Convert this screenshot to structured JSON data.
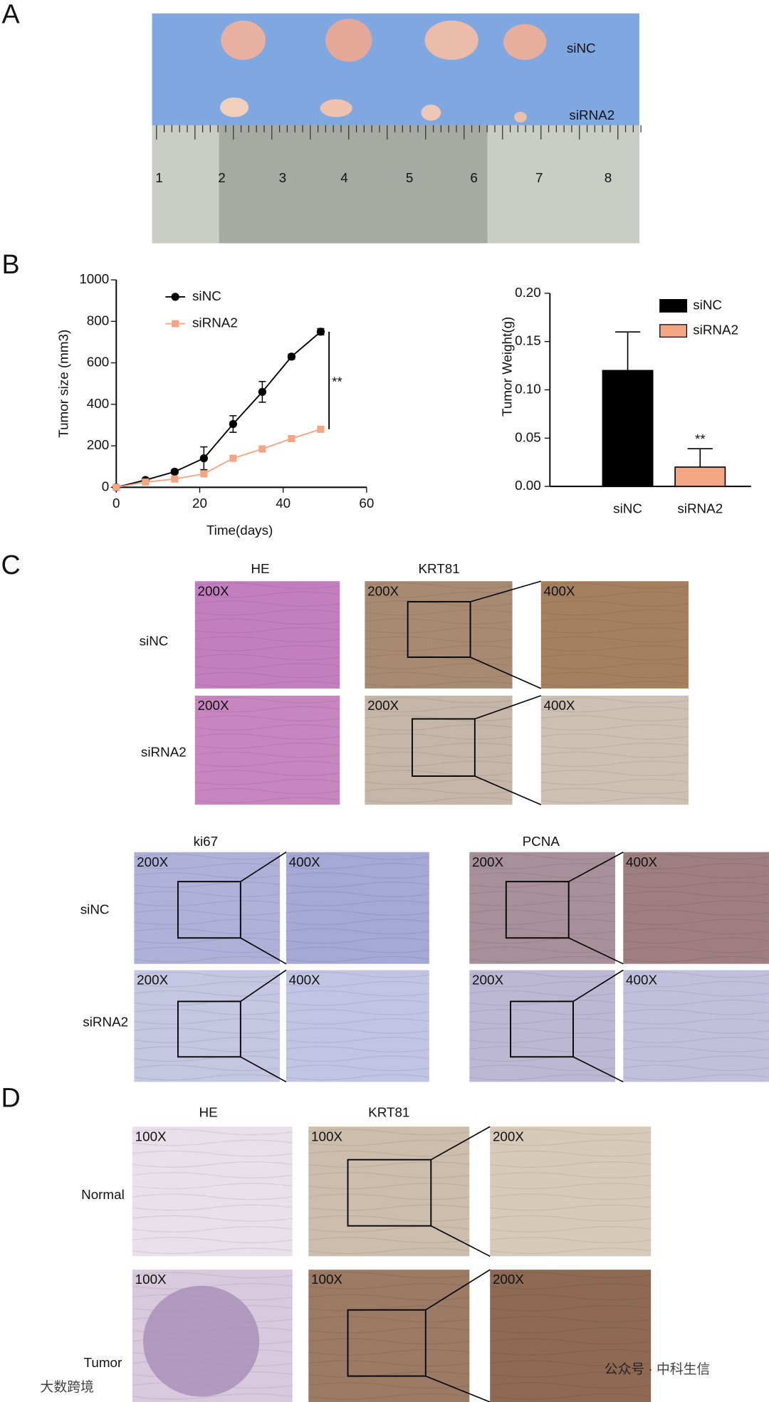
{
  "panel_labels": [
    "A",
    "B",
    "C",
    "D"
  ],
  "panel_a": {
    "rows": [
      "siNC",
      "siRNA2"
    ],
    "ruler": [
      "1",
      "2",
      "3",
      "4",
      "5",
      "6",
      "7",
      "8"
    ]
  },
  "chart_data": [
    {
      "type": "line",
      "xlabel": "Time(days)",
      "ylabel": "Tumor size (mm3)",
      "x": [
        0,
        7,
        14,
        21,
        28,
        35,
        42,
        49
      ],
      "series": [
        {
          "name": "siNC",
          "color": "#000000",
          "marker": "circle",
          "values": [
            0,
            35,
            75,
            140,
            305,
            460,
            630,
            750
          ],
          "errors": [
            5,
            8,
            10,
            55,
            40,
            50,
            12,
            15
          ]
        },
        {
          "name": "siRNA2",
          "color": "#f4a582",
          "marker": "square",
          "values": [
            0,
            25,
            40,
            65,
            140,
            185,
            235,
            280
          ],
          "errors": [
            4,
            5,
            6,
            8,
            10,
            12,
            12,
            12
          ]
        }
      ],
      "xlim": [
        0,
        60
      ],
      "xticks": [
        0,
        20,
        40,
        60
      ],
      "ylim": [
        0,
        1000
      ],
      "yticks": [
        0,
        200,
        400,
        600,
        800,
        1000
      ],
      "legend": "upper left",
      "annotation": "**"
    },
    {
      "type": "bar",
      "ylabel": "Tumor Weight(g)",
      "categories": [
        "siNC",
        "siRNA2"
      ],
      "values": [
        0.12,
        0.02
      ],
      "errors": [
        0.04,
        0.019
      ],
      "colors": [
        "#000000",
        "#f4a582"
      ],
      "ylim": [
        0,
        0.2
      ],
      "yticks": [
        {
          "value": 0,
          "label": "0.00"
        },
        {
          "value": 0.05,
          "label": "0.05"
        },
        {
          "value": 0.1,
          "label": "0.10"
        },
        {
          "value": 0.15,
          "label": "0.15"
        },
        {
          "value": 0.2,
          "label": "0.20"
        }
      ],
      "legend": "upper right",
      "annotation": "**"
    }
  ],
  "panel_c": {
    "titles": [
      "HE",
      "KRT81",
      "ki67",
      "PCNA"
    ],
    "row_labels_top": [
      "siNC",
      "siRNA2"
    ],
    "row_labels_bottom": [
      "siNC",
      "siRNA2"
    ],
    "magnifications": [
      "200X",
      "200X",
      "200X",
      "200X",
      "400X",
      "400X",
      "200X",
      "200X",
      "400X",
      "400X",
      "200X",
      "200X",
      "400X",
      "400X"
    ]
  },
  "panel_d": {
    "titles": [
      "HE",
      "KRT81"
    ],
    "row_labels": [
      "Normal",
      "Tumor"
    ],
    "magnifications": [
      "100X",
      "100X",
      "100X",
      "100X",
      "200X",
      "200X"
    ]
  },
  "watermarks": [
    "公众号 · 中科生信",
    "大数跨境"
  ]
}
